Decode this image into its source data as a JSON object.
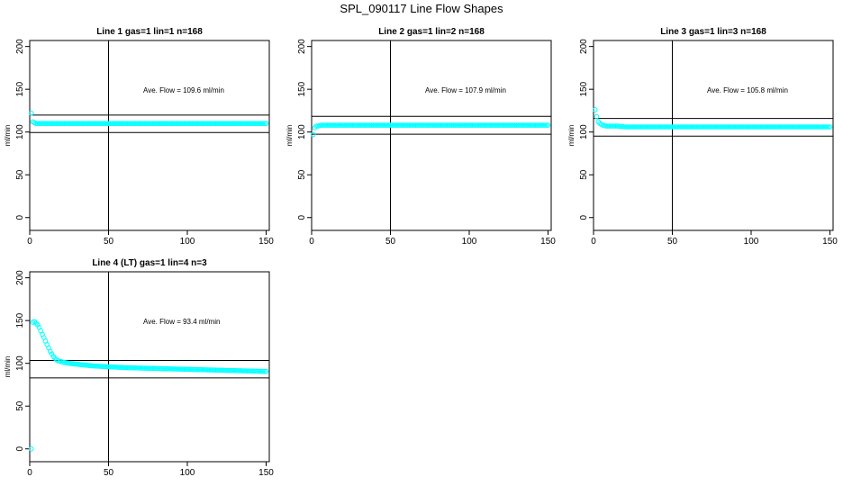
{
  "main_title": "SPL_090117  Line Flow Shapes",
  "chart_data": [
    {
      "type": "scatter",
      "title": "Line 1 gas=1 lin=1 n=168",
      "xlabel": "",
      "ylabel": "ml/min",
      "xlim": [
        0,
        152
      ],
      "ylim": [
        -15,
        207
      ],
      "xticks": [
        "0",
        "50",
        "100",
        "150"
      ],
      "xtick_values": [
        0,
        50,
        100,
        150
      ],
      "yticks": [
        "0",
        "50",
        "100",
        "150",
        "200"
      ],
      "ytick_values": [
        0,
        50,
        100,
        150,
        200
      ],
      "annotation": "Ave. Flow =  109.6  ml/min",
      "hlines": [
        119.8,
        99.4
      ],
      "vline_x": 50,
      "point_color": "#00FFFF",
      "series": [
        {
          "x": [
            1,
            2,
            3,
            4,
            6,
            10,
            20,
            40,
            60,
            80,
            100,
            120,
            140,
            150
          ],
          "y": [
            122,
            112,
            111,
            110,
            110,
            110,
            110,
            110,
            110,
            110,
            110,
            110,
            110,
            110
          ]
        }
      ]
    },
    {
      "type": "scatter",
      "title": "Line 2 gas=1 lin=2 n=168",
      "xlabel": "",
      "ylabel": "ml/min",
      "xlim": [
        0,
        152
      ],
      "ylim": [
        -15,
        207
      ],
      "xticks": [
        "0",
        "50",
        "100",
        "150"
      ],
      "xtick_values": [
        0,
        50,
        100,
        150
      ],
      "yticks": [
        "0",
        "50",
        "100",
        "150",
        "200"
      ],
      "ytick_values": [
        0,
        50,
        100,
        150,
        200
      ],
      "annotation": "Ave. Flow =  107.9  ml/min",
      "hlines": [
        118.4,
        97.4
      ],
      "vline_x": 50,
      "point_color": "#00FFFF",
      "series": [
        {
          "x": [
            1,
            2,
            3,
            4,
            6,
            10,
            20,
            40,
            60,
            80,
            100,
            120,
            140,
            150
          ],
          "y": [
            97,
            105,
            107,
            107,
            108,
            108,
            108,
            108,
            108,
            108,
            108,
            108,
            108,
            108
          ]
        }
      ]
    },
    {
      "type": "scatter",
      "title": "Line 3 gas=1 lin=3 n=168",
      "xlabel": "",
      "ylabel": "ml/min",
      "xlim": [
        0,
        152
      ],
      "ylim": [
        -15,
        207
      ],
      "xticks": [
        "0",
        "50",
        "100",
        "150"
      ],
      "xtick_values": [
        0,
        50,
        100,
        150
      ],
      "yticks": [
        "0",
        "50",
        "100",
        "150",
        "200"
      ],
      "ytick_values": [
        0,
        50,
        100,
        150,
        200
      ],
      "annotation": "Ave. Flow =  105.8  ml/min",
      "hlines": [
        115.8,
        95.2
      ],
      "vline_x": 50,
      "point_color": "#00FFFF",
      "series": [
        {
          "x": [
            1,
            2,
            3,
            4,
            5,
            6,
            8,
            10,
            15,
            20,
            40,
            60,
            80,
            100,
            120,
            140,
            150
          ],
          "y": [
            126,
            118,
            112,
            110,
            109,
            108,
            107,
            107,
            107,
            106,
            106,
            106,
            106,
            106,
            106,
            106,
            106
          ]
        }
      ]
    },
    {
      "type": "scatter",
      "title": "Line 4 (LT) gas=1 lin=4 n=3",
      "xlabel": "",
      "ylabel": "ml/min",
      "xlim": [
        0,
        152
      ],
      "ylim": [
        -15,
        207
      ],
      "xticks": [
        "0",
        "50",
        "100",
        "150"
      ],
      "xtick_values": [
        0,
        50,
        100,
        150
      ],
      "yticks": [
        "0",
        "50",
        "100",
        "150",
        "200"
      ],
      "ytick_values": [
        0,
        50,
        100,
        150,
        200
      ],
      "annotation": "Ave. Flow =  93.4  ml/min",
      "hlines": [
        103.4,
        83.0
      ],
      "vline_x": 50,
      "point_color": "#00FFFF",
      "series": [
        {
          "x": [
            1,
            2,
            3,
            4,
            5,
            6,
            7,
            8,
            9,
            10,
            11,
            12,
            13,
            14,
            15,
            16,
            17,
            18,
            20,
            22,
            25,
            30,
            35,
            40,
            50,
            60,
            70,
            80,
            90,
            100,
            110,
            120,
            130,
            140,
            150
          ],
          "y": [
            0,
            148,
            149,
            147,
            145,
            142,
            138,
            134,
            130,
            126,
            122,
            118,
            114,
            111,
            108,
            106,
            104,
            103,
            102,
            101,
            100,
            99,
            98,
            97,
            96,
            95,
            94.5,
            94,
            93.5,
            93,
            92.5,
            92,
            91.5,
            91,
            90.5
          ]
        }
      ]
    }
  ]
}
